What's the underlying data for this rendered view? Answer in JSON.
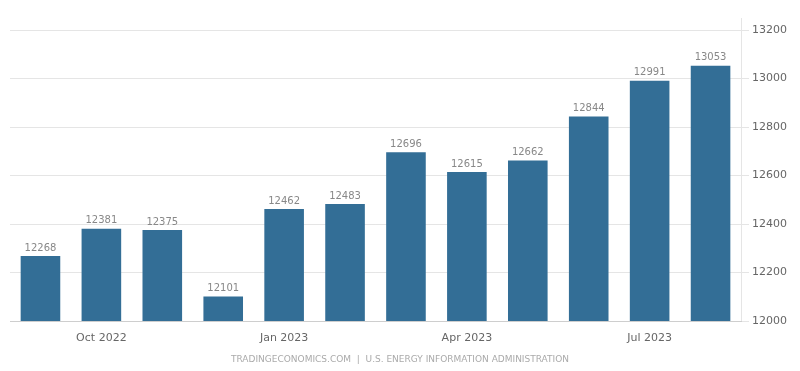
{
  "chart_data": {
    "type": "bar",
    "categories": [
      null,
      "Oct 2022",
      null,
      null,
      "Jan 2023",
      null,
      null,
      "Apr 2023",
      null,
      null,
      "Jul 2023",
      null
    ],
    "values": [
      12268,
      12381,
      12375,
      12101,
      12462,
      12483,
      12696,
      12615,
      12662,
      12844,
      12991,
      13053
    ],
    "color": "#336e96",
    "ylim": [
      12000,
      13250
    ],
    "yticks": [
      12000,
      12200,
      12400,
      12600,
      12800,
      13000,
      13200
    ],
    "grid": true,
    "data_labels": true,
    "annotation": "TRADINGECONOMICS.COM  |  U.S. ENERGY INFORMATION ADMINISTRATION"
  }
}
